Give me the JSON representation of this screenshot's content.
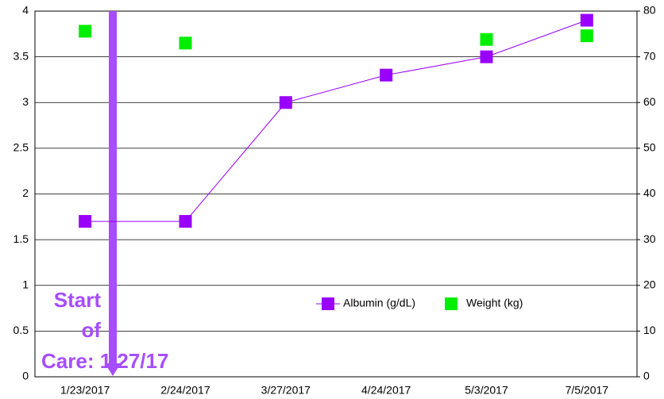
{
  "chart_data": {
    "type": "line",
    "categories": [
      "1/23/2017",
      "2/24/2017",
      "3/27/2017",
      "4/24/2017",
      "5/3/2017",
      "7/5/2017"
    ],
    "series": [
      {
        "name": "Albumin (g/dL)",
        "color": "#9900ff",
        "values": [
          1.7,
          1.7,
          3.0,
          3.3,
          3.5,
          3.9
        ],
        "line": true
      },
      {
        "name": "Weight (kg)",
        "color": "#00ee00",
        "values": [
          75.6,
          73,
          null,
          null,
          73.8,
          74.6
        ],
        "axis": "y2",
        "line": false
      }
    ],
    "ylim": [
      0,
      4
    ],
    "yticks": [
      0,
      0.5,
      1,
      1.5,
      2,
      2.5,
      3,
      3.5,
      4
    ],
    "y2lim": [
      0,
      80
    ],
    "y2ticks": [
      0,
      10,
      20,
      30,
      40,
      50,
      60,
      70,
      80
    ],
    "grid": true,
    "annotation": {
      "lines": [
        "Start",
        "of",
        "Care: 1/27/17"
      ],
      "color": "#a64dff"
    }
  }
}
